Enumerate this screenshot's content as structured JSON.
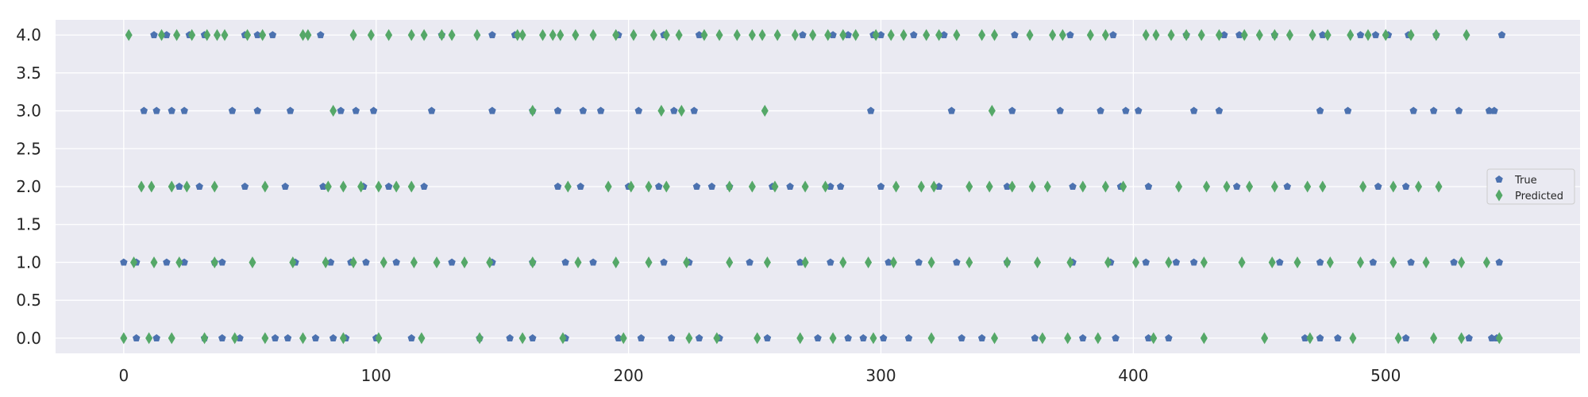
{
  "colors": {
    "plot_background": "#eaeaf2",
    "grid": "#ffffff",
    "true_series": "#4c72b0",
    "predicted_series": "#55a868",
    "text": "#262626"
  },
  "chart_data": {
    "type": "scatter",
    "title": "",
    "xlabel": "",
    "ylabel": "",
    "xlim": [
      -27,
      577
    ],
    "ylim": [
      -0.2,
      4.2
    ],
    "x_ticks": [
      0,
      100,
      200,
      300,
      400,
      500
    ],
    "y_ticks": [
      0.0,
      0.5,
      1.0,
      1.5,
      2.0,
      2.5,
      3.0,
      3.5,
      4.0
    ],
    "x_tick_labels": [
      "0",
      "100",
      "200",
      "300",
      "400",
      "500"
    ],
    "y_tick_labels": [
      "0.0",
      "0.5",
      "1.0",
      "1.5",
      "2.0",
      "2.5",
      "3.0",
      "3.5",
      "4.0"
    ],
    "grid": true,
    "legend_position": "center-right",
    "series": [
      {
        "name": "True",
        "marker": "pentagon",
        "points": [
          {
            "y": 4,
            "x": [
              12,
              17,
              26,
              32,
              48,
              53,
              59,
              78,
              126,
              146,
              155,
              196,
              214,
              228,
              269,
              281,
              287,
              297,
              300,
              313,
              325,
              353,
              375,
              392,
              421,
              436,
              442,
              456,
              475,
              490,
              496,
              501,
              509,
              520,
              546
            ]
          },
          {
            "y": 3,
            "x": [
              8,
              13,
              19,
              24,
              43,
              53,
              66,
              86,
              92,
              99,
              122,
              146,
              162,
              172,
              182,
              189,
              204,
              218,
              226,
              296,
              328,
              352,
              371,
              387,
              397,
              402,
              424,
              434,
              474,
              485,
              511,
              519,
              529,
              541,
              543
            ]
          },
          {
            "y": 2,
            "x": [
              22,
              30,
              48,
              64,
              79,
              95,
              105,
              119,
              172,
              181,
              200,
              212,
              227,
              233,
              240,
              257,
              264,
              280,
              284,
              300,
              323,
              350,
              376,
              395,
              406,
              441,
              461,
              497,
              508
            ]
          },
          {
            "y": 1,
            "x": [
              0,
              5,
              17,
              24,
              36,
              39,
              68,
              82,
              90,
              96,
              108,
              130,
              146,
              162,
              175,
              186,
              214,
              224,
              248,
              268,
              280,
              303,
              315,
              330,
              350,
              376,
              391,
              405,
              417,
              424,
              458,
              474,
              495,
              510,
              527,
              545
            ]
          },
          {
            "y": 0,
            "x": [
              5,
              13,
              32,
              39,
              46,
              60,
              65,
              76,
              83,
              88,
              100,
              114,
              141,
              153,
              162,
              175,
              196,
              205,
              217,
              228,
              236,
              255,
              275,
              287,
              293,
              301,
              311,
              332,
              340,
              361,
              380,
              393,
              406,
              414,
              468,
              474,
              481,
              508,
              533,
              542,
              544
            ]
          }
        ]
      },
      {
        "name": "Predicted",
        "marker": "thin_diamond",
        "points": [
          {
            "y": 4,
            "x": [
              2,
              15,
              21,
              27,
              33,
              37,
              40,
              49,
              55,
              71,
              73,
              91,
              98,
              105,
              114,
              119,
              126,
              130,
              140,
              156,
              158,
              166,
              170,
              173,
              179,
              186,
              195,
              202,
              210,
              215,
              220,
              230,
              236,
              243,
              249,
              253,
              259,
              266,
              273,
              279,
              285,
              290,
              298,
              304,
              309,
              318,
              323,
              330,
              340,
              345,
              359,
              368,
              372,
              383,
              389,
              405,
              409,
              415,
              421,
              427,
              434,
              444,
              450,
              456,
              462,
              471,
              477,
              486,
              493,
              500,
              510,
              520,
              532
            ]
          },
          {
            "y": 3,
            "x": [
              83,
              162,
              213,
              221,
              254,
              344
            ]
          },
          {
            "y": 2,
            "x": [
              7,
              11,
              19,
              25,
              36,
              56,
              81,
              87,
              94,
              101,
              108,
              114,
              176,
              192,
              201,
              208,
              215,
              240,
              249,
              258,
              270,
              278,
              306,
              316,
              321,
              335,
              343,
              352,
              360,
              366,
              380,
              389,
              396,
              418,
              429,
              437,
              446,
              456,
              469,
              475,
              491,
              503,
              513,
              521
            ]
          },
          {
            "y": 1,
            "x": [
              4,
              12,
              22,
              36,
              51,
              67,
              80,
              91,
              103,
              115,
              124,
              135,
              145,
              162,
              180,
              195,
              208,
              223,
              240,
              255,
              270,
              285,
              295,
              305,
              320,
              335,
              350,
              362,
              375,
              390,
              401,
              414,
              428,
              443,
              455,
              465,
              478,
              490,
              503,
              516,
              530,
              540
            ]
          },
          {
            "y": 0,
            "x": [
              0,
              10,
              19,
              32,
              44,
              56,
              71,
              87,
              101,
              118,
              141,
              158,
              174,
              198,
              224,
              235,
              251,
              268,
              281,
              297,
              320,
              345,
              364,
              374,
              386,
              408,
              428,
              452,
              470,
              487,
              505,
              519,
              530,
              545
            ]
          }
        ]
      }
    ]
  }
}
